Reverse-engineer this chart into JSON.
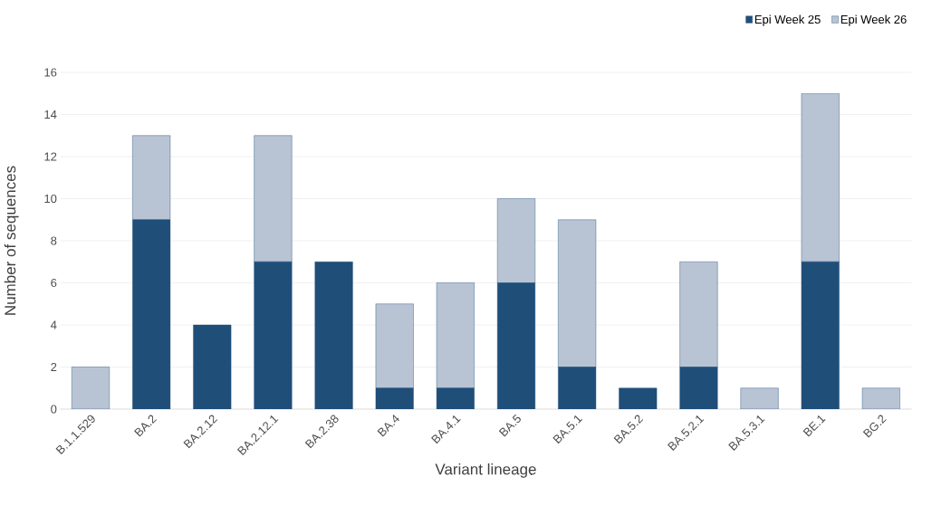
{
  "chart_data": {
    "type": "bar",
    "stacked": true,
    "xlabel": "Variant lineage",
    "ylabel": "Number of sequences",
    "categories": [
      "B.1.1.529",
      "BA.2",
      "BA.2.12",
      "BA.2.12.1",
      "BA.2.38",
      "BA.4",
      "BA.4.1",
      "BA.5",
      "BA.5.1",
      "BA.5.2",
      "BA.5.2.1",
      "BA.5.3.1",
      "BE.1",
      "BG.2"
    ],
    "series": [
      {
        "name": "Epi Week 25",
        "color": "#1f4e79",
        "values": [
          0,
          9,
          4,
          7,
          7,
          1,
          1,
          6,
          2,
          1,
          2,
          0,
          7,
          0
        ]
      },
      {
        "name": "Epi Week 26",
        "color": "#b8c4d4",
        "values": [
          2,
          4,
          0,
          6,
          0,
          4,
          5,
          4,
          7,
          0,
          5,
          1,
          8,
          1
        ]
      }
    ],
    "ylim": [
      0,
      16
    ],
    "yticks": [
      0,
      2,
      4,
      6,
      8,
      10,
      12,
      14,
      16
    ],
    "grid": "y",
    "legend": "top right"
  }
}
